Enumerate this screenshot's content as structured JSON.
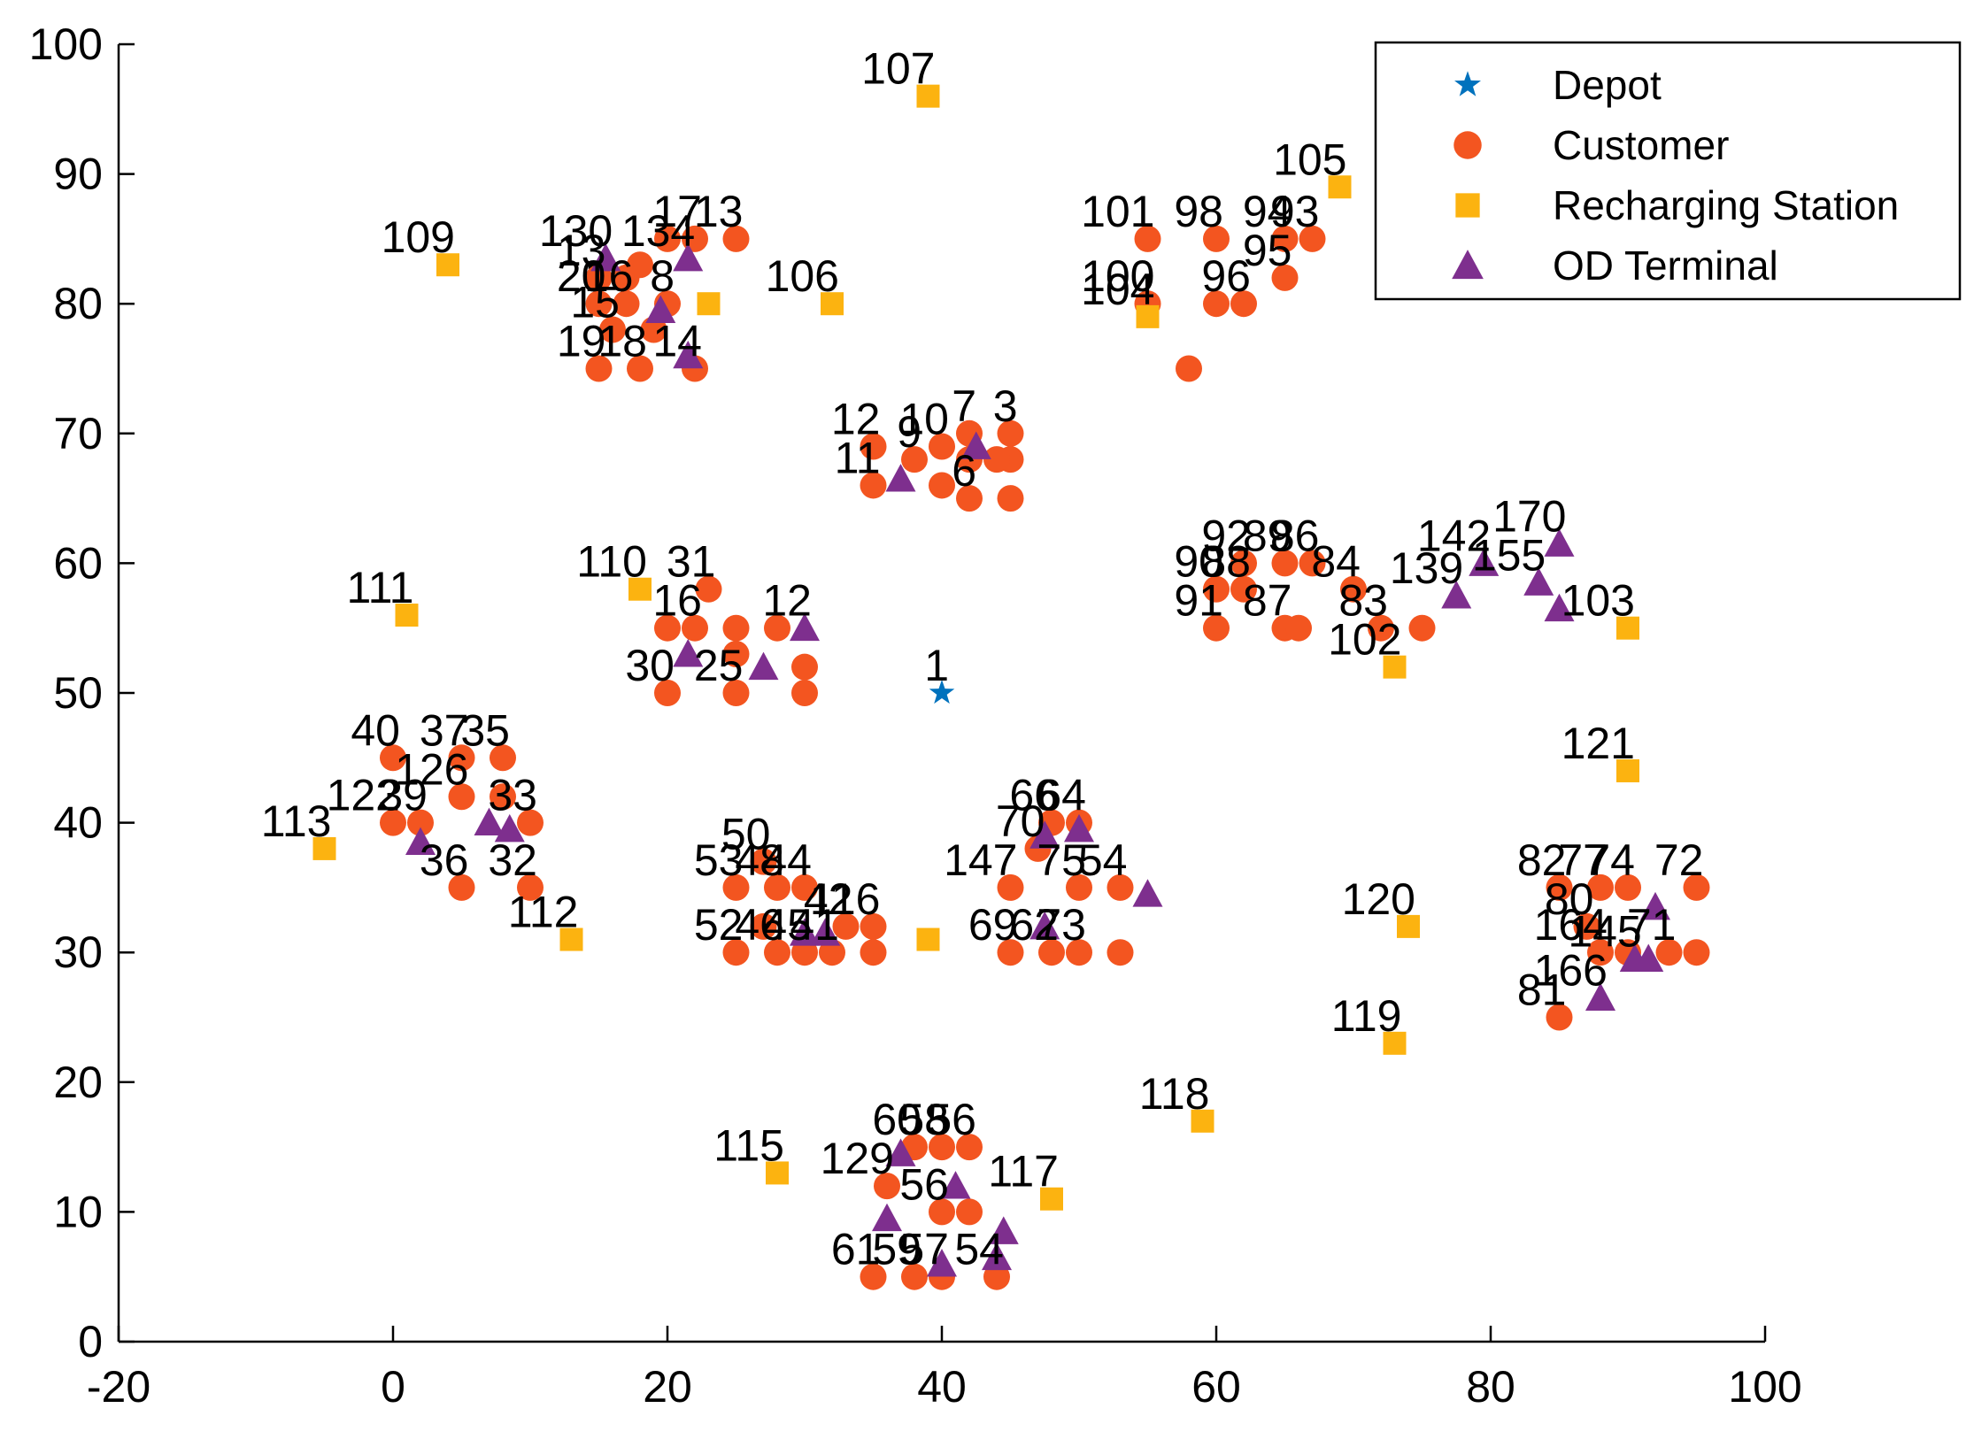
{
  "chart_data": {
    "type": "scatter",
    "xlim": [
      -20,
      100
    ],
    "ylim": [
      0,
      100
    ],
    "xticks": [
      -20,
      0,
      20,
      40,
      60,
      80,
      100
    ],
    "yticks": [
      0,
      10,
      20,
      30,
      40,
      50,
      60,
      70,
      80,
      90,
      100
    ],
    "grid": false,
    "legend_position": "top-right",
    "colors": {
      "depot": "#0072BD",
      "customer": "#F35520",
      "station": "#FCB310",
      "terminal": "#7E2F8E"
    },
    "series": [
      {
        "name": "Depot",
        "marker": "star",
        "points": [
          {
            "x": 40,
            "y": 50,
            "label": "1"
          }
        ]
      },
      {
        "name": "Customer",
        "marker": "circle",
        "points": [
          {
            "x": 15,
            "y": 75,
            "label": "19"
          },
          {
            "x": 18,
            "y": 75,
            "label": "18"
          },
          {
            "x": 22,
            "y": 75,
            "label": "14"
          },
          {
            "x": 15,
            "y": 80,
            "label": "20"
          },
          {
            "x": 17,
            "y": 80,
            "label": "16"
          },
          {
            "x": 20,
            "y": 80,
            "label": "8"
          },
          {
            "x": 16,
            "y": 78,
            "label": "15"
          },
          {
            "x": 19,
            "y": 78,
            "label": ""
          },
          {
            "x": 15,
            "y": 82,
            "label": "13"
          },
          {
            "x": 17,
            "y": 82,
            "label": ""
          },
          {
            "x": 22,
            "y": 85,
            "label": "17"
          },
          {
            "x": 25,
            "y": 85,
            "label": "13"
          },
          {
            "x": 20,
            "y": 85,
            "label": ""
          },
          {
            "x": 18,
            "y": 83,
            "label": ""
          },
          {
            "x": 35,
            "y": 66,
            "label": "11"
          },
          {
            "x": 35,
            "y": 69,
            "label": "12"
          },
          {
            "x": 38,
            "y": 68,
            "label": "9"
          },
          {
            "x": 40,
            "y": 66,
            "label": ""
          },
          {
            "x": 40,
            "y": 69,
            "label": "10"
          },
          {
            "x": 42,
            "y": 65,
            "label": "6"
          },
          {
            "x": 42,
            "y": 68,
            "label": ""
          },
          {
            "x": 42,
            "y": 70,
            "label": "7"
          },
          {
            "x": 45,
            "y": 65,
            "label": ""
          },
          {
            "x": 45,
            "y": 68,
            "label": ""
          },
          {
            "x": 45,
            "y": 70,
            "label": "3"
          },
          {
            "x": 44,
            "y": 68,
            "label": ""
          },
          {
            "x": 55,
            "y": 80,
            "label": "100"
          },
          {
            "x": 55,
            "y": 85,
            "label": "101"
          },
          {
            "x": 58,
            "y": 75,
            "label": ""
          },
          {
            "x": 60,
            "y": 80,
            "label": ""
          },
          {
            "x": 60,
            "y": 85,
            "label": "98"
          },
          {
            "x": 62,
            "y": 80,
            "label": "96"
          },
          {
            "x": 65,
            "y": 82,
            "label": "95"
          },
          {
            "x": 65,
            "y": 85,
            "label": "94"
          },
          {
            "x": 67,
            "y": 85,
            "label": "93"
          },
          {
            "x": 60,
            "y": 55,
            "label": "91"
          },
          {
            "x": 62,
            "y": 58,
            "label": "88"
          },
          {
            "x": 65,
            "y": 55,
            "label": "87"
          },
          {
            "x": 66,
            "y": 55,
            "label": ""
          },
          {
            "x": 65,
            "y": 60,
            "label": "89"
          },
          {
            "x": 67,
            "y": 60,
            "label": "86"
          },
          {
            "x": 70,
            "y": 58,
            "label": "84"
          },
          {
            "x": 72,
            "y": 55,
            "label": "83"
          },
          {
            "x": 75,
            "y": 55,
            "label": ""
          },
          {
            "x": 60,
            "y": 58,
            "label": "90"
          },
          {
            "x": 62,
            "y": 60,
            "label": "92"
          },
          {
            "x": 20,
            "y": 50,
            "label": "30"
          },
          {
            "x": 25,
            "y": 50,
            "label": "25"
          },
          {
            "x": 30,
            "y": 50,
            "label": ""
          },
          {
            "x": 30,
            "y": 52,
            "label": ""
          },
          {
            "x": 25,
            "y": 55,
            "label": ""
          },
          {
            "x": 22,
            "y": 55,
            "label": "16"
          },
          {
            "x": 28,
            "y": 55,
            "label": ""
          },
          {
            "x": 25,
            "y": 53,
            "label": ""
          },
          {
            "x": 23,
            "y": 58,
            "label": "31"
          },
          {
            "x": 20,
            "y": 55,
            "label": ""
          },
          {
            "x": 0,
            "y": 40,
            "label": "122"
          },
          {
            "x": 0,
            "y": 45,
            "label": "40"
          },
          {
            "x": 5,
            "y": 45,
            "label": "37"
          },
          {
            "x": 8,
            "y": 45,
            "label": "35"
          },
          {
            "x": 5,
            "y": 35,
            "label": "36"
          },
          {
            "x": 2,
            "y": 40,
            "label": "39"
          },
          {
            "x": 10,
            "y": 35,
            "label": "32"
          },
          {
            "x": 10,
            "y": 40,
            "label": "33"
          },
          {
            "x": 8,
            "y": 42,
            "label": ""
          },
          {
            "x": 5,
            "y": 42,
            "label": "126"
          },
          {
            "x": 25,
            "y": 30,
            "label": "52"
          },
          {
            "x": 28,
            "y": 30,
            "label": "46"
          },
          {
            "x": 30,
            "y": 30,
            "label": "45"
          },
          {
            "x": 32,
            "y": 30,
            "label": "41"
          },
          {
            "x": 35,
            "y": 30,
            "label": ""
          },
          {
            "x": 25,
            "y": 35,
            "label": "53"
          },
          {
            "x": 27,
            "y": 32,
            "label": ""
          },
          {
            "x": 30,
            "y": 35,
            "label": "44"
          },
          {
            "x": 33,
            "y": 32,
            "label": "42"
          },
          {
            "x": 35,
            "y": 32,
            "label": "116"
          },
          {
            "x": 28,
            "y": 35,
            "label": "48"
          },
          {
            "x": 27,
            "y": 37,
            "label": "50"
          },
          {
            "x": 45,
            "y": 30,
            "label": "69"
          },
          {
            "x": 48,
            "y": 30,
            "label": "62"
          },
          {
            "x": 50,
            "y": 30,
            "label": "73"
          },
          {
            "x": 53,
            "y": 30,
            "label": ""
          },
          {
            "x": 45,
            "y": 35,
            "label": "147"
          },
          {
            "x": 50,
            "y": 35,
            "label": "75"
          },
          {
            "x": 53,
            "y": 35,
            "label": "54"
          },
          {
            "x": 47,
            "y": 38,
            "label": "70"
          },
          {
            "x": 50,
            "y": 40,
            "label": "64"
          },
          {
            "x": 48,
            "y": 40,
            "label": "66"
          },
          {
            "x": 35,
            "y": 5,
            "label": "61"
          },
          {
            "x": 38,
            "y": 5,
            "label": "59"
          },
          {
            "x": 40,
            "y": 5,
            "label": "57"
          },
          {
            "x": 44,
            "y": 5,
            "label": "54"
          },
          {
            "x": 40,
            "y": 10,
            "label": "56"
          },
          {
            "x": 42,
            "y": 10,
            "label": ""
          },
          {
            "x": 38,
            "y": 15,
            "label": "60"
          },
          {
            "x": 40,
            "y": 15,
            "label": "58"
          },
          {
            "x": 42,
            "y": 15,
            "label": "56"
          },
          {
            "x": 36,
            "y": 12,
            "label": "129"
          },
          {
            "x": 85,
            "y": 25,
            "label": "81"
          },
          {
            "x": 88,
            "y": 30,
            "label": "164"
          },
          {
            "x": 90,
            "y": 30,
            "label": ""
          },
          {
            "x": 93,
            "y": 30,
            "label": "71"
          },
          {
            "x": 95,
            "y": 30,
            "label": ""
          },
          {
            "x": 95,
            "y": 35,
            "label": "72"
          },
          {
            "x": 88,
            "y": 35,
            "label": "77"
          },
          {
            "x": 90,
            "y": 35,
            "label": "74"
          },
          {
            "x": 85,
            "y": 35,
            "label": "82"
          },
          {
            "x": 87,
            "y": 32,
            "label": "80"
          }
        ]
      },
      {
        "name": "Recharging Station",
        "marker": "square",
        "points": [
          {
            "x": 39,
            "y": 96,
            "label": "107"
          },
          {
            "x": 69,
            "y": 89,
            "label": "105"
          },
          {
            "x": 4,
            "y": 83,
            "label": "109"
          },
          {
            "x": 32,
            "y": 80,
            "label": "106"
          },
          {
            "x": 23,
            "y": 80,
            "label": ""
          },
          {
            "x": 55,
            "y": 79,
            "label": "104"
          },
          {
            "x": 18,
            "y": 58,
            "label": "110"
          },
          {
            "x": 1,
            "y": 56,
            "label": "111"
          },
          {
            "x": 90,
            "y": 55,
            "label": "103"
          },
          {
            "x": 73,
            "y": 52,
            "label": "102"
          },
          {
            "x": 90,
            "y": 44,
            "label": "121"
          },
          {
            "x": -5,
            "y": 38,
            "label": "113"
          },
          {
            "x": 74,
            "y": 32,
            "label": "120"
          },
          {
            "x": 13,
            "y": 31,
            "label": "112"
          },
          {
            "x": 39,
            "y": 31,
            "label": ""
          },
          {
            "x": 73,
            "y": 23,
            "label": "119"
          },
          {
            "x": 59,
            "y": 17,
            "label": "118"
          },
          {
            "x": 28,
            "y": 13,
            "label": "115"
          },
          {
            "x": 48,
            "y": 11,
            "label": "117"
          }
        ]
      },
      {
        "name": "OD Terminal",
        "marker": "triangle",
        "points": [
          {
            "x": 15.5,
            "y": 83.5,
            "label": "130"
          },
          {
            "x": 21.5,
            "y": 83.5,
            "label": "134"
          },
          {
            "x": 19.5,
            "y": 79.5,
            "label": ""
          },
          {
            "x": 21.5,
            "y": 76,
            "label": ""
          },
          {
            "x": 37,
            "y": 66.5,
            "label": ""
          },
          {
            "x": 42.5,
            "y": 69,
            "label": ""
          },
          {
            "x": 30,
            "y": 55,
            "label": "12"
          },
          {
            "x": 21.5,
            "y": 53,
            "label": ""
          },
          {
            "x": 27,
            "y": 52,
            "label": ""
          },
          {
            "x": 7,
            "y": 40,
            "label": ""
          },
          {
            "x": 2,
            "y": 38.5,
            "label": ""
          },
          {
            "x": 8.5,
            "y": 39.5,
            "label": ""
          },
          {
            "x": 30,
            "y": 31.5,
            "label": ""
          },
          {
            "x": 31.5,
            "y": 31.5,
            "label": ""
          },
          {
            "x": 47.5,
            "y": 32,
            "label": ""
          },
          {
            "x": 47.5,
            "y": 39,
            "label": ""
          },
          {
            "x": 50,
            "y": 39.5,
            "label": ""
          },
          {
            "x": 55,
            "y": 34.5,
            "label": ""
          },
          {
            "x": 36,
            "y": 9.5,
            "label": ""
          },
          {
            "x": 40,
            "y": 6,
            "label": ""
          },
          {
            "x": 44,
            "y": 6.5,
            "label": ""
          },
          {
            "x": 44.5,
            "y": 8.5,
            "label": ""
          },
          {
            "x": 37,
            "y": 14.5,
            "label": ""
          },
          {
            "x": 41,
            "y": 12,
            "label": ""
          },
          {
            "x": 77.5,
            "y": 57.5,
            "label": "139"
          },
          {
            "x": 79.5,
            "y": 60,
            "label": "142"
          },
          {
            "x": 83.5,
            "y": 58.5,
            "label": "155"
          },
          {
            "x": 85,
            "y": 61.5,
            "label": "170"
          },
          {
            "x": 85,
            "y": 56.5,
            "label": ""
          },
          {
            "x": 88,
            "y": 26.5,
            "label": "166"
          },
          {
            "x": 90.5,
            "y": 29.5,
            "label": "145"
          },
          {
            "x": 91.5,
            "y": 29.5,
            "label": ""
          },
          {
            "x": 92,
            "y": 33.5,
            "label": ""
          }
        ]
      }
    ]
  }
}
